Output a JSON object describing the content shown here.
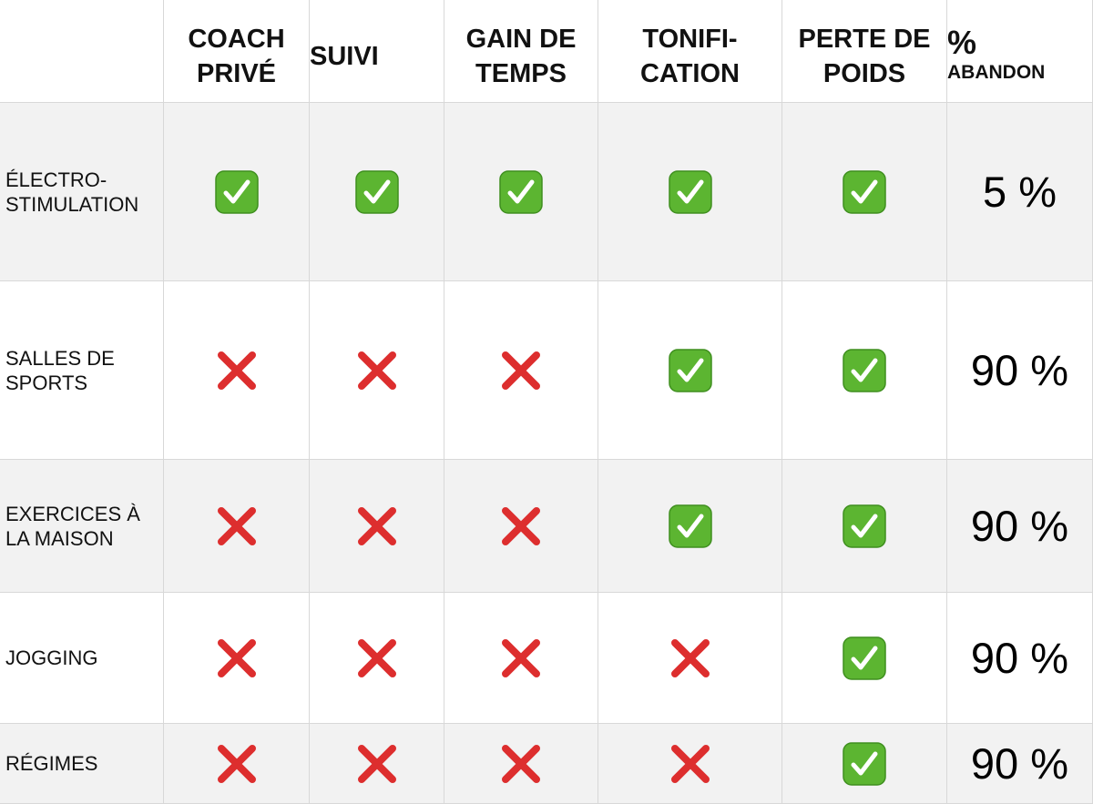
{
  "table": {
    "header": [
      "COACH PRIVÉ",
      "SUIVI",
      "GAIN DE TEMPS",
      "TONIFI-CATION",
      "PERTE DE POIDS",
      {
        "symbol": "%",
        "text": "ABANDON"
      }
    ],
    "rows": [
      {
        "label": "ÉLECTRO-STIMULATION",
        "checks": [
          true,
          true,
          true,
          true,
          true
        ],
        "abandon": "5 %"
      },
      {
        "label": "SALLES DE SPORTS",
        "checks": [
          false,
          false,
          false,
          true,
          true
        ],
        "abandon": "90 %"
      },
      {
        "label": "EXERCICES À LA MAISON",
        "checks": [
          false,
          false,
          false,
          true,
          true
        ],
        "abandon": "90 %"
      },
      {
        "label": "JOGGING",
        "checks": [
          false,
          false,
          false,
          false,
          true
        ],
        "abandon": "90 %"
      },
      {
        "label": "RÉGIMES",
        "checks": [
          false,
          false,
          false,
          false,
          true
        ],
        "abandon": "90 %"
      }
    ]
  }
}
